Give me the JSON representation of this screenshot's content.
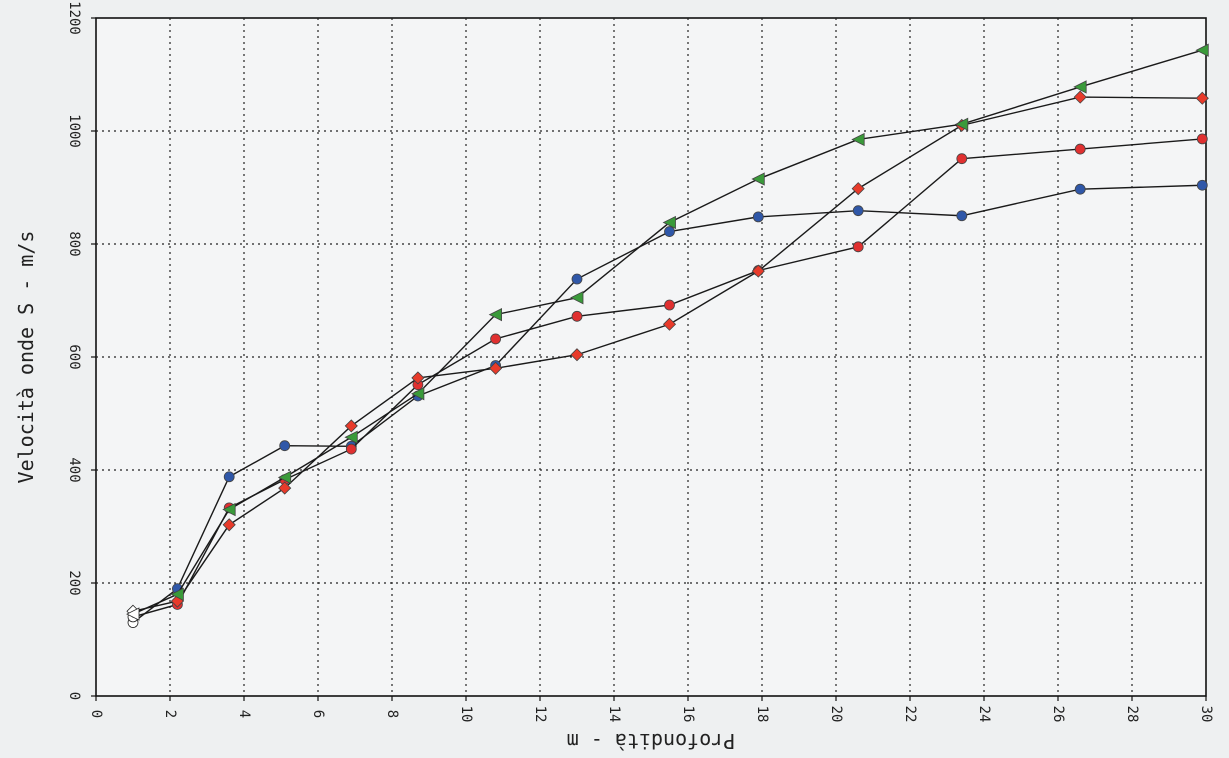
{
  "chart_data": {
    "type": "line",
    "title": "",
    "xlabel": "Profondità - m",
    "ylabel": "Velocità onde S - m/s",
    "xlim": [
      0,
      30
    ],
    "ylim": [
      0,
      1200
    ],
    "x_ticks": [
      "0",
      "2",
      "4",
      "6",
      "8",
      "10",
      "12",
      "14",
      "16",
      "18",
      "20",
      "22",
      "24",
      "26",
      "28",
      "30"
    ],
    "y_ticks": [
      "0",
      "200",
      "400",
      "600",
      "800",
      "1000",
      "1200"
    ],
    "grid": true,
    "legend": "none",
    "series": [
      {
        "marker": "circle",
        "color": "#2f57a8",
        "points": [
          [
            1,
            130
          ],
          [
            2.2,
            190
          ],
          [
            3.6,
            388
          ],
          [
            5.1,
            443
          ],
          [
            6.9,
            442
          ],
          [
            8.7,
            531
          ],
          [
            10.8,
            585
          ],
          [
            13,
            738
          ],
          [
            15.5,
            822
          ],
          [
            17.9,
            848
          ],
          [
            20.6,
            859
          ],
          [
            23.4,
            850
          ],
          [
            26.6,
            897
          ],
          [
            29.9,
            904
          ]
        ]
      },
      {
        "marker": "circle",
        "color": "#e03030",
        "points": [
          [
            1,
            140
          ],
          [
            2.2,
            162
          ],
          [
            3.6,
            333
          ],
          [
            5.1,
            383
          ],
          [
            6.9,
            437
          ],
          [
            8.7,
            551
          ],
          [
            10.8,
            632
          ],
          [
            13,
            672
          ],
          [
            15.5,
            692
          ],
          [
            17.9,
            753
          ],
          [
            20.6,
            795
          ],
          [
            23.4,
            951
          ],
          [
            26.6,
            968
          ],
          [
            29.9,
            986
          ]
        ]
      },
      {
        "marker": "diamond",
        "color": "#e83a2a",
        "points": [
          [
            1,
            150
          ],
          [
            2.2,
            168
          ],
          [
            3.6,
            303
          ],
          [
            5.1,
            368
          ],
          [
            6.9,
            478
          ],
          [
            8.7,
            563
          ],
          [
            10.8,
            580
          ],
          [
            13,
            604
          ],
          [
            15.5,
            658
          ],
          [
            17.9,
            752
          ],
          [
            20.6,
            898
          ],
          [
            23.4,
            1010
          ],
          [
            26.6,
            1060
          ],
          [
            29.9,
            1058
          ]
        ]
      },
      {
        "marker": "triangle",
        "color": "#3a9a3a",
        "points": [
          [
            1,
            145
          ],
          [
            2.2,
            180
          ],
          [
            3.6,
            330
          ],
          [
            5.1,
            387
          ],
          [
            6.9,
            458
          ],
          [
            8.7,
            535
          ],
          [
            10.8,
            675
          ],
          [
            13,
            705
          ],
          [
            15.5,
            838
          ],
          [
            17.9,
            915
          ],
          [
            20.6,
            985
          ],
          [
            23.4,
            1012
          ],
          [
            26.6,
            1078
          ],
          [
            29.9,
            1143
          ]
        ]
      }
    ]
  }
}
